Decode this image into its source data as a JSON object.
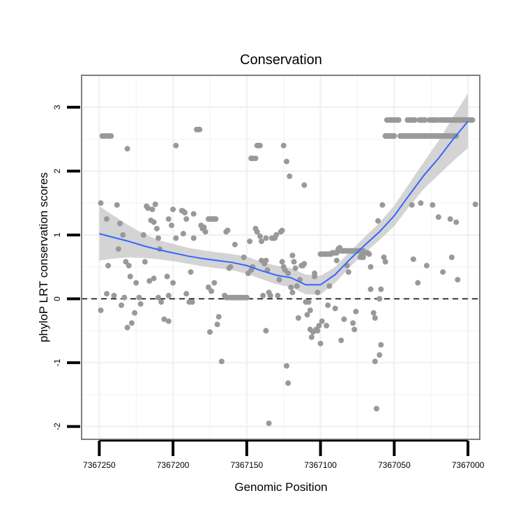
{
  "chart_data": {
    "type": "scatter",
    "title": "Conservation",
    "xlabel": "Genomic Position",
    "ylabel": "phyloP LRT conservation scores",
    "xlim": [
      7367262,
      7366992
    ],
    "x_reversed": true,
    "ylim": [
      -2.2,
      3.5
    ],
    "x_ticks": [
      7367250,
      7367200,
      7367150,
      7367100,
      7367050,
      7367000
    ],
    "x_tick_labels": [
      "7367250",
      "7367200",
      "7367150",
      "7367100",
      "7367050",
      "7367000"
    ],
    "y_ticks": [
      -2,
      -1,
      0,
      1,
      2,
      3
    ],
    "y_tick_labels": [
      "-2",
      "-1",
      "0",
      "1",
      "2",
      "3"
    ],
    "reference_line": {
      "y": 0,
      "style": "dashed"
    },
    "grid": true,
    "colors": {
      "points": "#999999",
      "smooth": "#3366ff",
      "ribbon": "#cccccc",
      "frame": "#7f7f7f",
      "grid": "#f2f2f2"
    },
    "points": [
      [
        7367248,
        2.55
      ],
      [
        7367247,
        2.55
      ],
      [
        7367246,
        2.55
      ],
      [
        7367244,
        2.55
      ],
      [
        7367243,
        2.55
      ],
      [
        7367242,
        2.55
      ],
      [
        7367249,
        1.5
      ],
      [
        7367238,
        1.47
      ],
      [
        7367245,
        1.25
      ],
      [
        7367236,
        1.18
      ],
      [
        7367234,
        1.0
      ],
      [
        7367237,
        0.78
      ],
      [
        7367244,
        0.52
      ],
      [
        7367232,
        0.58
      ],
      [
        7367230,
        0.52
      ],
      [
        7367245,
        0.08
      ],
      [
        7367240,
        0.05
      ],
      [
        7367233,
        0.02
      ],
      [
        7367249,
        -0.18
      ],
      [
        7367235,
        -0.1
      ],
      [
        7367229,
        0.35
      ],
      [
        7367231,
        -0.45
      ],
      [
        7367228,
        -0.38
      ],
      [
        7367226,
        -0.22
      ],
      [
        7367222,
        -0.08
      ],
      [
        7367225,
        0.25
      ],
      [
        7367231,
        2.35
      ],
      [
        7367219,
        0.58
      ],
      [
        7367223,
        0.02
      ],
      [
        7367220,
        1.0
      ],
      [
        7367217,
        1.42
      ],
      [
        7367218,
        1.45
      ],
      [
        7367214,
        1.4
      ],
      [
        7367212,
        1.48
      ],
      [
        7367213,
        1.2
      ],
      [
        7367211,
        1.1
      ],
      [
        7367210,
        0.95
      ],
      [
        7367215,
        1.23
      ],
      [
        7367209,
        0.78
      ],
      [
        7367216,
        0.28
      ],
      [
        7367213,
        0.32
      ],
      [
        7367204,
        0.35
      ],
      [
        7367210,
        0.02
      ],
      [
        7367208,
        -0.05
      ],
      [
        7367206,
        -0.32
      ],
      [
        7367203,
        -0.35
      ],
      [
        7367203,
        0.05
      ],
      [
        7367200,
        1.4
      ],
      [
        7367201,
        1.15
      ],
      [
        7367198,
        0.95
      ],
      [
        7367203,
        1.25
      ],
      [
        7367200,
        0.25
      ],
      [
        7367198,
        2.4
      ],
      [
        7367194,
        1.38
      ],
      [
        7367193,
        1.37
      ],
      [
        7367192,
        1.35
      ],
      [
        7367191,
        1.25
      ],
      [
        7367193,
        1.02
      ],
      [
        7367191,
        0.08
      ],
      [
        7367189,
        -0.05
      ],
      [
        7367188,
        0.42
      ],
      [
        7367187,
        -0.05
      ],
      [
        7367186,
        0.95
      ],
      [
        7367186,
        1.33
      ],
      [
        7367184,
        2.65
      ],
      [
        7367183,
        2.65
      ],
      [
        7367182,
        2.65
      ],
      [
        7367181,
        1.15
      ],
      [
        7367180,
        1.1
      ],
      [
        7367179,
        1.12
      ],
      [
        7367178,
        1.05
      ],
      [
        7367176,
        1.25
      ],
      [
        7367175,
        1.25
      ],
      [
        7367174,
        1.25
      ],
      [
        7367173,
        1.25
      ],
      [
        7367172,
        1.25
      ],
      [
        7367171,
        1.25
      ],
      [
        7367176,
        0.18
      ],
      [
        7367174,
        0.12
      ],
      [
        7367172,
        0.25
      ],
      [
        7367170,
        -0.4
      ],
      [
        7367169,
        -0.28
      ],
      [
        7367175,
        -0.52
      ],
      [
        7367167,
        -0.98
      ],
      [
        7367165,
        0.05
      ],
      [
        7367164,
        0.02
      ],
      [
        7367163,
        0.02
      ],
      [
        7367161,
        0.02
      ],
      [
        7367160,
        0.02
      ],
      [
        7367159,
        0.02
      ],
      [
        7367158,
        0.02
      ],
      [
        7367157,
        0.02
      ],
      [
        7367156,
        0.02
      ],
      [
        7367155,
        0.02
      ],
      [
        7367154,
        0.02
      ],
      [
        7367153,
        0.02
      ],
      [
        7367152,
        0.02
      ],
      [
        7367151,
        0.02
      ],
      [
        7367150,
        0.02
      ],
      [
        7367161,
        0.5
      ],
      [
        7367162,
        0.48
      ],
      [
        7367164,
        1.05
      ],
      [
        7367163,
        1.07
      ],
      [
        7367158,
        0.85
      ],
      [
        7367152,
        0.65
      ],
      [
        7367149,
        0.4
      ],
      [
        7367147,
        0.45
      ],
      [
        7367146,
        0.5
      ],
      [
        7367148,
        0.9
      ],
      [
        7367147,
        2.2
      ],
      [
        7367146,
        2.2
      ],
      [
        7367144,
        2.2
      ],
      [
        7367144,
        1.1
      ],
      [
        7367143,
        1.05
      ],
      [
        7367143,
        2.4
      ],
      [
        7367142,
        2.4
      ],
      [
        7367141,
        2.4
      ],
      [
        7367141,
        0.98
      ],
      [
        7367140,
        0.6
      ],
      [
        7367138,
        0.55
      ],
      [
        7367137,
        0.6
      ],
      [
        7367140,
        0.9
      ],
      [
        7367137,
        0.95
      ],
      [
        7367139,
        0.05
      ],
      [
        7367137,
        -0.5
      ],
      [
        7367136,
        0.45
      ],
      [
        7367135,
        0.1
      ],
      [
        7367134,
        0.05
      ],
      [
        7367135,
        -1.95
      ],
      [
        7367133,
        0.95
      ],
      [
        7367132,
        0.95
      ],
      [
        7367131,
        0.95
      ],
      [
        7367130,
        1.0
      ],
      [
        7367129,
        0.05
      ],
      [
        7367128,
        0.3
      ],
      [
        7367127,
        1.05
      ],
      [
        7367126,
        0.58
      ],
      [
        7367126,
        1.07
      ],
      [
        7367125,
        0.5
      ],
      [
        7367124,
        0.45
      ],
      [
        7367125,
        2.4
      ],
      [
        7367123,
        2.15
      ],
      [
        7367123,
        -1.05
      ],
      [
        7367122,
        -1.32
      ],
      [
        7367122,
        0.4
      ],
      [
        7367121,
        1.92
      ],
      [
        7367120,
        0.18
      ],
      [
        7367119,
        0.1
      ],
      [
        7367119,
        0.68
      ],
      [
        7367118,
        0.58
      ],
      [
        7367117,
        0.48
      ],
      [
        7367116,
        0.2
      ],
      [
        7367115,
        -0.3
      ],
      [
        7367114,
        0.3
      ],
      [
        7367113,
        0.52
      ],
      [
        7367112,
        0.52
      ],
      [
        7367111,
        0.55
      ],
      [
        7367111,
        1.78
      ],
      [
        7367110,
        -0.05
      ],
      [
        7367109,
        -0.25
      ],
      [
        7367108,
        -0.05
      ],
      [
        7367107,
        -0.48
      ],
      [
        7367107,
        -0.18
      ],
      [
        7367106,
        -0.6
      ],
      [
        7367105,
        -0.52
      ],
      [
        7367104,
        0.4
      ],
      [
        7367104,
        0.35
      ],
      [
        7367103,
        -0.48
      ],
      [
        7367102,
        -0.5
      ],
      [
        7367102,
        0.1
      ],
      [
        7367101,
        -0.42
      ],
      [
        7367100,
        -0.7
      ],
      [
        7367099,
        -0.35
      ],
      [
        7367100,
        0.7
      ],
      [
        7367099,
        0.7
      ],
      [
        7367098,
        0.7
      ],
      [
        7367097,
        0.7
      ],
      [
        7367096,
        0.7
      ],
      [
        7367095,
        0.7
      ],
      [
        7367094,
        0.7
      ],
      [
        7367093,
        0.7
      ],
      [
        7367092,
        0.72
      ],
      [
        7367091,
        0.72
      ],
      [
        7367090,
        0.72
      ],
      [
        7367089,
        0.72
      ],
      [
        7367096,
        -0.42
      ],
      [
        7367095,
        -0.1
      ],
      [
        7367094,
        0.2
      ],
      [
        7367090,
        -0.15
      ],
      [
        7367089,
        0.6
      ],
      [
        7367088,
        0.78
      ],
      [
        7367087,
        0.8
      ],
      [
        7367086,
        0.75
      ],
      [
        7367085,
        0.75
      ],
      [
        7367084,
        0.75
      ],
      [
        7367083,
        0.75
      ],
      [
        7367082,
        0.75
      ],
      [
        7367081,
        0.75
      ],
      [
        7367080,
        0.75
      ],
      [
        7367079,
        0.75
      ],
      [
        7367078,
        0.75
      ],
      [
        7367077,
        0.75
      ],
      [
        7367076,
        0.75
      ],
      [
        7367075,
        0.75
      ],
      [
        7367074,
        0.75
      ],
      [
        7367073,
        0.75
      ],
      [
        7367072,
        0.75
      ],
      [
        7367071,
        0.75
      ],
      [
        7367086,
        -0.65
      ],
      [
        7367084,
        -0.32
      ],
      [
        7367082,
        0.52
      ],
      [
        7367081,
        0.42
      ],
      [
        7367078,
        -0.38
      ],
      [
        7367077,
        -0.48
      ],
      [
        7367076,
        -0.2
      ],
      [
        7367073,
        0.65
      ],
      [
        7367072,
        0.7
      ],
      [
        7367071,
        0.65
      ],
      [
        7367070,
        0.72
      ],
      [
        7367069,
        0.72
      ],
      [
        7367068,
        0.72
      ],
      [
        7367067,
        0.7
      ],
      [
        7367066,
        0.5
      ],
      [
        7367066,
        0.15
      ],
      [
        7367064,
        -0.22
      ],
      [
        7367063,
        -0.3
      ],
      [
        7367063,
        -0.98
      ],
      [
        7367062,
        -1.72
      ],
      [
        7367061,
        1.22
      ],
      [
        7367060,
        0.0
      ],
      [
        7367059,
        0.15
      ],
      [
        7367060,
        -0.88
      ],
      [
        7367059,
        -0.72
      ],
      [
        7367058,
        1.47
      ],
      [
        7367057,
        0.65
      ],
      [
        7367056,
        0.58
      ],
      [
        7367056,
        2.55
      ],
      [
        7367055,
        2.55
      ],
      [
        7367054,
        2.55
      ],
      [
        7367053,
        2.55
      ],
      [
        7367052,
        2.55
      ],
      [
        7367051,
        2.55
      ],
      [
        7367050,
        2.55
      ],
      [
        7367055,
        2.8
      ],
      [
        7367054,
        2.8
      ],
      [
        7367053,
        2.8
      ],
      [
        7367052,
        2.8
      ],
      [
        7367051,
        2.8
      ],
      [
        7367050,
        2.8
      ],
      [
        7367049,
        2.8
      ],
      [
        7367048,
        2.8
      ],
      [
        7367047,
        2.8
      ],
      [
        7367046,
        2.55
      ],
      [
        7367045,
        2.55
      ],
      [
        7367044,
        2.55
      ],
      [
        7367043,
        2.55
      ],
      [
        7367042,
        2.55
      ],
      [
        7367041,
        2.55
      ],
      [
        7367040,
        2.55
      ],
      [
        7367039,
        2.55
      ],
      [
        7367038,
        2.55
      ],
      [
        7367037,
        2.55
      ],
      [
        7367036,
        2.55
      ],
      [
        7367035,
        2.55
      ],
      [
        7367034,
        2.55
      ],
      [
        7367033,
        2.55
      ],
      [
        7367032,
        2.55
      ],
      [
        7367031,
        2.55
      ],
      [
        7367030,
        2.55
      ],
      [
        7367029,
        2.55
      ],
      [
        7367028,
        2.55
      ],
      [
        7367027,
        2.55
      ],
      [
        7367026,
        2.55
      ],
      [
        7367025,
        2.55
      ],
      [
        7367024,
        2.55
      ],
      [
        7367023,
        2.55
      ],
      [
        7367022,
        2.55
      ],
      [
        7367021,
        2.55
      ],
      [
        7367020,
        2.55
      ],
      [
        7367019,
        2.55
      ],
      [
        7367018,
        2.55
      ],
      [
        7367017,
        2.55
      ],
      [
        7367016,
        2.55
      ],
      [
        7367015,
        2.55
      ],
      [
        7367014,
        2.55
      ],
      [
        7367013,
        2.55
      ],
      [
        7367012,
        2.55
      ],
      [
        7367011,
        2.55
      ],
      [
        7367010,
        2.55
      ],
      [
        7367009,
        2.55
      ],
      [
        7367008,
        2.55
      ],
      [
        7367041,
        2.8
      ],
      [
        7367040,
        2.8
      ],
      [
        7367039,
        2.8
      ],
      [
        7367038,
        2.8
      ],
      [
        7367037,
        2.8
      ],
      [
        7367036,
        2.8
      ],
      [
        7367033,
        2.8
      ],
      [
        7367032,
        2.8
      ],
      [
        7367031,
        2.8
      ],
      [
        7367030,
        2.8
      ],
      [
        7367029,
        2.8
      ],
      [
        7367026,
        2.8
      ],
      [
        7367025,
        2.8
      ],
      [
        7367024,
        2.8
      ],
      [
        7367023,
        2.8
      ],
      [
        7367022,
        2.8
      ],
      [
        7367021,
        2.8
      ],
      [
        7367019,
        2.8
      ],
      [
        7367018,
        2.8
      ],
      [
        7367017,
        2.8
      ],
      [
        7367016,
        2.8
      ],
      [
        7367015,
        2.8
      ],
      [
        7367014,
        2.8
      ],
      [
        7367013,
        2.8
      ],
      [
        7367012,
        2.8
      ],
      [
        7367011,
        2.8
      ],
      [
        7367010,
        2.8
      ],
      [
        7367009,
        2.8
      ],
      [
        7367008,
        2.8
      ],
      [
        7367007,
        2.8
      ],
      [
        7367006,
        2.8
      ],
      [
        7367005,
        2.8
      ],
      [
        7367004,
        2.8
      ],
      [
        7367003,
        2.8
      ],
      [
        7367002,
        2.8
      ],
      [
        7367001,
        2.8
      ],
      [
        7367000,
        2.8
      ],
      [
        7366999,
        2.8
      ],
      [
        7366998,
        2.8
      ],
      [
        7366997,
        2.8
      ],
      [
        7367038,
        1.47
      ],
      [
        7367037,
        0.62
      ],
      [
        7367034,
        0.25
      ],
      [
        7367032,
        1.5
      ],
      [
        7367028,
        0.52
      ],
      [
        7367024,
        1.47
      ],
      [
        7367020,
        1.28
      ],
      [
        7367017,
        0.42
      ],
      [
        7367012,
        1.25
      ],
      [
        7367011,
        0.65
      ],
      [
        7367008,
        1.2
      ],
      [
        7367007,
        0.3
      ],
      [
        7366995,
        1.48
      ]
    ],
    "smooth_x": [
      7367250,
      7367240,
      7367230,
      7367220,
      7367210,
      7367200,
      7367190,
      7367180,
      7367170,
      7367160,
      7367150,
      7367140,
      7367130,
      7367120,
      7367110,
      7367100,
      7367090,
      7367080,
      7367070,
      7367060,
      7367050,
      7367040,
      7367030,
      7367020,
      7367010,
      7367000
    ],
    "smooth_y": [
      1.02,
      0.96,
      0.9,
      0.83,
      0.77,
      0.72,
      0.67,
      0.63,
      0.6,
      0.57,
      0.52,
      0.44,
      0.37,
      0.33,
      0.22,
      0.22,
      0.38,
      0.62,
      0.84,
      1.05,
      1.3,
      1.62,
      1.93,
      2.2,
      2.5,
      2.78
    ],
    "smooth_ci_upper": [
      1.45,
      1.3,
      1.15,
      1.02,
      0.92,
      0.86,
      0.8,
      0.76,
      0.73,
      0.7,
      0.66,
      0.58,
      0.52,
      0.48,
      0.38,
      0.36,
      0.5,
      0.74,
      0.97,
      1.19,
      1.46,
      1.8,
      2.14,
      2.47,
      2.85,
      3.22
    ],
    "smooth_ci_lower": [
      0.6,
      0.63,
      0.65,
      0.64,
      0.62,
      0.59,
      0.55,
      0.51,
      0.48,
      0.45,
      0.39,
      0.31,
      0.23,
      0.18,
      0.07,
      0.07,
      0.25,
      0.5,
      0.72,
      0.92,
      1.14,
      1.44,
      1.72,
      1.94,
      2.16,
      2.36
    ]
  }
}
